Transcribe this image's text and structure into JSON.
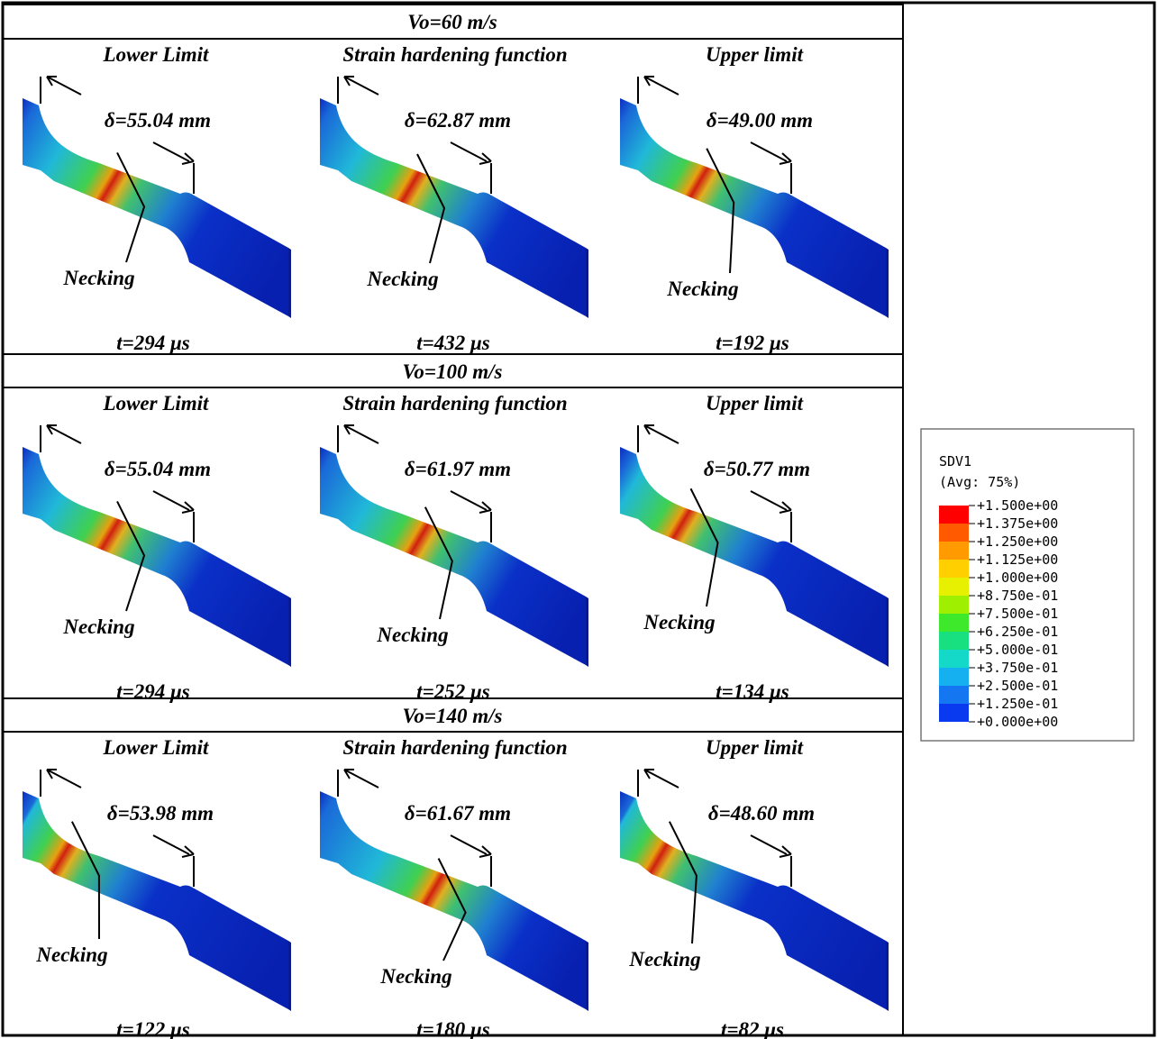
{
  "sections": [
    {
      "header": "Vo=60 m/s",
      "panels": [
        {
          "label": "Lower Limit",
          "delta": "δ=55.04 mm",
          "necking": "Necking",
          "time": "t=294 μs"
        },
        {
          "label": "Strain hardening function",
          "delta": "δ=62.87 mm",
          "necking": "Necking",
          "time": "t=432 μs"
        },
        {
          "label": "Upper limit",
          "delta": "δ=49.00 mm",
          "necking": "Necking",
          "time": "t=192 μs"
        }
      ]
    },
    {
      "header": "Vo=100 m/s",
      "panels": [
        {
          "label": "Lower Limit",
          "delta": "δ=55.04 mm",
          "necking": "Necking",
          "time": "t=294 μs"
        },
        {
          "label": "Strain hardening function",
          "delta": "δ=61.97 mm",
          "necking": "Necking",
          "time": "t=252 μs"
        },
        {
          "label": "Upper limit",
          "delta": "δ=50.77 mm",
          "necking": "Necking",
          "time": "t=134 μs"
        }
      ]
    },
    {
      "header": "Vo=140 m/s",
      "panels": [
        {
          "label": "Lower Limit",
          "delta": "δ=53.98 mm",
          "necking": "Necking",
          "time": "t=122 μs"
        },
        {
          "label": "Strain hardening function",
          "delta": "δ=61.67 mm",
          "necking": "Necking",
          "time": "t=180 μs"
        },
        {
          "label": "Upper limit",
          "delta": "δ=48.60 mm",
          "necking": "Necking",
          "time": "t=82 μs"
        }
      ]
    }
  ],
  "legend": {
    "title": "SDV1",
    "subtitle": "(Avg: 75%)",
    "labels": [
      "+1.500e+00",
      "+1.375e+00",
      "+1.250e+00",
      "+1.125e+00",
      "+1.000e+00",
      "+8.750e-01",
      "+7.500e-01",
      "+6.250e-01",
      "+5.000e-01",
      "+3.750e-01",
      "+2.500e-01",
      "+1.250e-01",
      "+0.000e+00"
    ],
    "colors": [
      "#ff0000",
      "#ff5a00",
      "#ff9a00",
      "#ffcf00",
      "#e6f000",
      "#9ef000",
      "#3ee82a",
      "#18e080",
      "#14d8c8",
      "#14b0f0",
      "#1476f0",
      "#0a3af0"
    ]
  }
}
